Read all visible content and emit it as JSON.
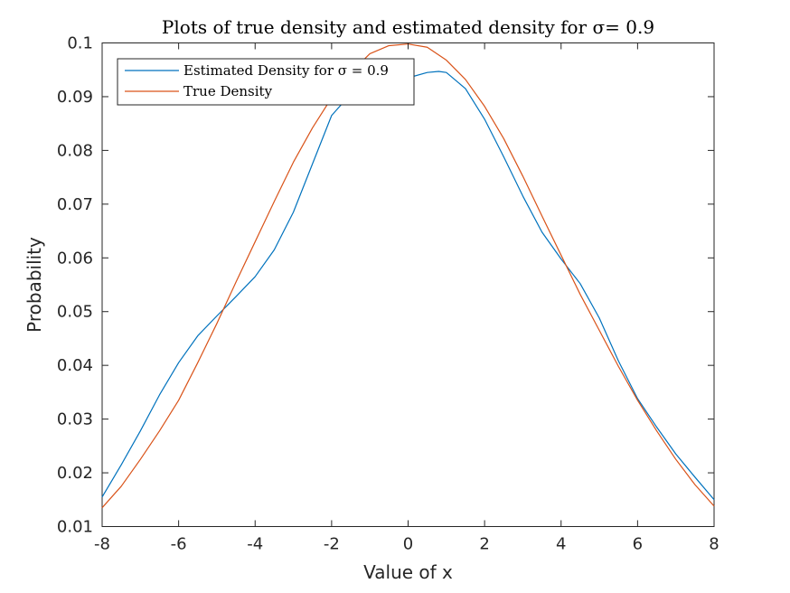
{
  "chart_data": {
    "type": "line",
    "title": "Plots of true density and estimated density for σ= 0.9",
    "xlabel": "Value of x",
    "ylabel": "Probability",
    "xlim": [
      -8,
      8
    ],
    "ylim": [
      0.01,
      0.1
    ],
    "x_ticks": [
      -8,
      -6,
      -4,
      -2,
      0,
      2,
      4,
      6,
      8
    ],
    "x_tick_labels": [
      "-8",
      "-6",
      "-4",
      "-2",
      "0",
      "2",
      "4",
      "6",
      "8"
    ],
    "y_ticks": [
      0.01,
      0.02,
      0.03,
      0.04,
      0.05,
      0.06,
      0.07,
      0.08,
      0.09,
      0.1
    ],
    "y_tick_labels": [
      "0.01",
      "0.02",
      "0.03",
      "0.04",
      "0.05",
      "0.06",
      "0.07",
      "0.08",
      "0.09",
      "0.1"
    ],
    "grid": false,
    "legend_position": "top-left",
    "series": [
      {
        "name": "Estimated Density for σ = 0.9",
        "color": "#0072BD",
        "x": [
          -8,
          -7.5,
          -7,
          -6.5,
          -6,
          -5.5,
          -5,
          -4.5,
          -4,
          -3.5,
          -3,
          -2.5,
          -2,
          -1.5,
          -1,
          -0.5,
          0,
          0.5,
          0.8,
          1,
          1.5,
          2,
          2.5,
          3,
          3.5,
          4,
          4.5,
          5,
          5.5,
          6,
          6.5,
          7,
          7.5,
          8
        ],
        "y": [
          0.0155,
          0.0215,
          0.0278,
          0.0345,
          0.0405,
          0.0455,
          0.0492,
          0.0528,
          0.0565,
          0.0615,
          0.0685,
          0.0775,
          0.0865,
          0.0905,
          0.0915,
          0.0925,
          0.0935,
          0.0945,
          0.0947,
          0.0945,
          0.0915,
          0.0858,
          0.0788,
          0.0715,
          0.0648,
          0.0598,
          0.0552,
          0.0488,
          0.0408,
          0.0338,
          0.0285,
          0.0235,
          0.0192,
          0.015
        ]
      },
      {
        "name": "True Density",
        "color": "#D95319",
        "x": [
          -8,
          -7.5,
          -7,
          -6.5,
          -6,
          -5.5,
          -5,
          -4.5,
          -4,
          -3.5,
          -3,
          -2.5,
          -2,
          -1.5,
          -1,
          -0.5,
          0,
          0.5,
          1,
          1.5,
          2,
          2.5,
          3,
          3.5,
          4,
          4.5,
          5,
          5.5,
          6,
          6.5,
          7,
          7.5,
          8
        ],
        "y": [
          0.0135,
          0.0175,
          0.0225,
          0.0278,
          0.0335,
          0.0405,
          0.0478,
          0.0555,
          0.063,
          0.0705,
          0.0778,
          0.0842,
          0.0898,
          0.0945,
          0.098,
          0.0995,
          0.0998,
          0.0992,
          0.0968,
          0.0932,
          0.0882,
          0.0822,
          0.0752,
          0.0678,
          0.0605,
          0.0532,
          0.0465,
          0.0398,
          0.0335,
          0.0278,
          0.0225,
          0.0178,
          0.0138
        ]
      }
    ]
  }
}
